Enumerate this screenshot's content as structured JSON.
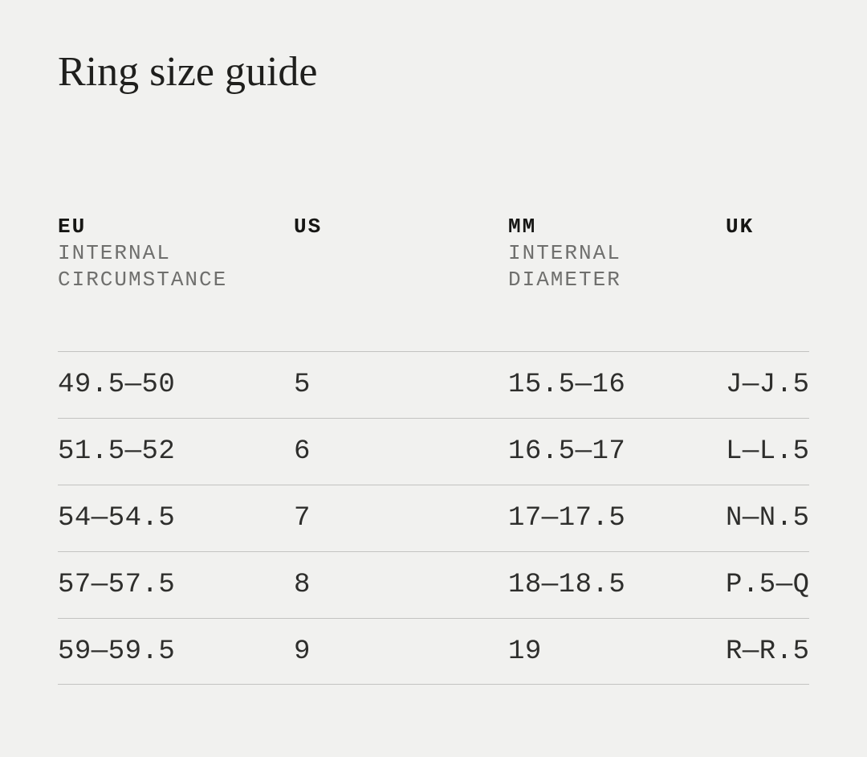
{
  "page": {
    "title": "Ring size guide"
  },
  "colors": {
    "background": "#f1f1ef",
    "title_text": "#1f1f1d",
    "header_text": "#161614",
    "subheader_text": "#6f6f6d",
    "data_text": "#2e2e2c",
    "divider": "#c3c3c1"
  },
  "table": {
    "columns": [
      {
        "code": "EU",
        "sub_line1": "INTERNAL",
        "sub_line2": "CIRCUMSTANCE"
      },
      {
        "code": "US",
        "sub_line1": "",
        "sub_line2": ""
      },
      {
        "code": "MM",
        "sub_line1": "INTERNAL",
        "sub_line2": "DIAMETER"
      },
      {
        "code": "UK",
        "sub_line1": "",
        "sub_line2": ""
      }
    ],
    "rows": [
      [
        "49.5—50",
        "5",
        "15.5—16",
        "J—J.5"
      ],
      [
        "51.5—52",
        "6",
        "16.5—17",
        "L—L.5"
      ],
      [
        "54—54.5",
        "7",
        "17—17.5",
        "N—N.5"
      ],
      [
        "57—57.5",
        "8",
        "18—18.5",
        "P.5—Q"
      ],
      [
        "59—59.5",
        "9",
        "19",
        "R—R.5"
      ]
    ]
  }
}
